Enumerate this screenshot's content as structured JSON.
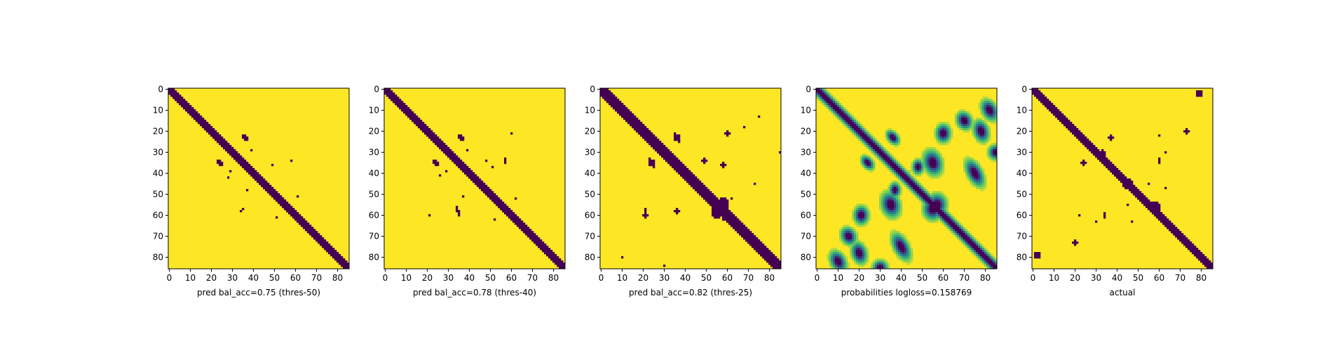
{
  "figure": {
    "panels": [
      {
        "xlabel": "pred bal_acc=0.75 (thres-50)",
        "mode": "binary",
        "diag_width": 2.2,
        "off_diag": false,
        "blobs": [
          [
            23,
            36,
            1.6,
            1.0,
            0.7
          ],
          [
            35,
            24,
            1.6,
            1.0,
            0.7
          ],
          [
            29,
            39,
            0.6,
            0.6,
            0
          ],
          [
            39,
            29,
            0.6,
            0.6,
            0
          ],
          [
            34,
            58,
            0.7,
            0.7,
            0
          ],
          [
            58,
            34,
            0.7,
            0.7,
            0
          ],
          [
            36,
            49,
            0.6,
            0.6,
            0
          ],
          [
            61,
            51,
            0.6,
            0.6,
            0
          ],
          [
            51,
            61,
            0.6,
            0.6,
            0
          ],
          [
            42,
            28,
            0.6,
            0.6,
            0
          ],
          [
            57,
            35,
            0.6,
            0.6,
            0
          ],
          [
            48,
            37,
            0.5,
            0.5,
            0
          ]
        ]
      },
      {
        "xlabel": "pred bal_acc=0.78 (thres-40)",
        "mode": "binary",
        "diag_width": 2.4,
        "off_diag": false,
        "blobs": [
          [
            23,
            36,
            1.8,
            1.1,
            0.7
          ],
          [
            35,
            24,
            1.8,
            1.1,
            0.7
          ],
          [
            29,
            39,
            0.6,
            0.6,
            0
          ],
          [
            39,
            29,
            0.6,
            0.6,
            0
          ],
          [
            34,
            57,
            1.0,
            0.8,
            0
          ],
          [
            57,
            34,
            1.0,
            0.8,
            0
          ],
          [
            21,
            60,
            0.6,
            0.6,
            0
          ],
          [
            60,
            21,
            0.6,
            0.6,
            0
          ],
          [
            51,
            37,
            0.8,
            0.6,
            0
          ],
          [
            37,
            51,
            0.8,
            0.6,
            0
          ],
          [
            52,
            62,
            0.7,
            0.7,
            0
          ],
          [
            62,
            52,
            0.7,
            0.7,
            0
          ],
          [
            34,
            48,
            0.6,
            0.6,
            0
          ],
          [
            59,
            35,
            1.0,
            0.7,
            0
          ],
          [
            41,
            26,
            0.6,
            0.6,
            0
          ]
        ]
      },
      {
        "xlabel": "pred bal_acc=0.82 (thres-25)",
        "mode": "binary",
        "diag_width": 2.6,
        "off_diag": true,
        "blobs": [
          [
            23,
            36,
            2.0,
            1.2,
            0.7
          ],
          [
            35,
            24,
            2.0,
            1.2,
            0.7
          ],
          [
            58,
            55,
            2.8,
            2.5,
            0
          ],
          [
            55,
            58,
            2.8,
            2.5,
            0
          ],
          [
            34,
            49,
            1.0,
            0.9,
            0
          ],
          [
            36,
            58,
            1.2,
            1.0,
            0
          ],
          [
            58,
            36,
            1.2,
            1.0,
            0
          ],
          [
            21,
            60,
            1.1,
            0.9,
            0
          ],
          [
            60,
            21,
            1.1,
            0.9,
            0
          ],
          [
            18,
            68,
            0.8,
            0.8,
            0
          ],
          [
            45,
            73,
            0.6,
            0.6,
            0
          ],
          [
            58,
            21,
            1.5,
            0.7,
            0
          ],
          [
            62,
            58,
            0.7,
            0.7,
            0
          ],
          [
            52,
            62,
            0.7,
            0.7,
            0
          ],
          [
            30,
            85,
            0.6,
            0.6,
            0
          ],
          [
            80,
            10,
            0.7,
            0.7,
            0
          ],
          [
            84,
            30,
            0.5,
            0.5,
            0
          ],
          [
            13,
            75,
            0.6,
            0.6,
            0
          ]
        ]
      },
      {
        "xlabel": "probabilities logloss=0.158769",
        "mode": "prob",
        "diag_width": 2.0,
        "off_diag": true,
        "blobs": [
          [
            23,
            36,
            2.2,
            1.4,
            0.7
          ],
          [
            35,
            24,
            2.2,
            1.4,
            0.7
          ],
          [
            57,
            55,
            3.0,
            2.6,
            0
          ],
          [
            55,
            57,
            3.0,
            2.6,
            0
          ],
          [
            35,
            55,
            3.5,
            2.5,
            0.3
          ],
          [
            55,
            35,
            3.5,
            2.5,
            0.3
          ],
          [
            21,
            60,
            2.5,
            2.0,
            0
          ],
          [
            60,
            21,
            2.5,
            2.0,
            0
          ],
          [
            40,
            75,
            4.0,
            2.0,
            0.5
          ],
          [
            75,
            40,
            4.0,
            2.0,
            0.5
          ],
          [
            20,
            78,
            3.0,
            2.0,
            0.3
          ],
          [
            78,
            20,
            3.0,
            2.0,
            0.3
          ],
          [
            15,
            70,
            2.5,
            2.0,
            0.5
          ],
          [
            70,
            15,
            2.5,
            2.0,
            0.5
          ],
          [
            30,
            85,
            2.0,
            2.0,
            0
          ],
          [
            85,
            30,
            2.0,
            2.0,
            0
          ],
          [
            10,
            82,
            3.0,
            2.0,
            0.5
          ],
          [
            82,
            10,
            3.0,
            2.0,
            0.5
          ],
          [
            48,
            37,
            2.0,
            1.5,
            0
          ],
          [
            37,
            48,
            2.0,
            1.5,
            0
          ]
        ]
      },
      {
        "xlabel": "actual",
        "mode": "binary",
        "diag_width": 1.8,
        "off_diag": true,
        "blobs": [
          [
            31,
            33,
            1.8,
            1.6,
            0
          ],
          [
            56,
            58,
            2.2,
            2.0,
            0
          ],
          [
            23,
            37,
            1.2,
            0.8,
            0.7
          ],
          [
            35,
            24,
            1.2,
            0.8,
            0.7
          ],
          [
            20,
            73,
            1.0,
            1.0,
            0
          ],
          [
            73,
            20,
            1.0,
            1.0,
            0
          ],
          [
            22,
            60,
            0.8,
            0.8,
            0
          ],
          [
            60,
            22,
            0.8,
            0.8,
            0
          ],
          [
            46,
            44,
            1.3,
            1.0,
            0
          ],
          [
            44,
            46,
            1.3,
            1.0,
            0
          ],
          [
            60,
            34,
            1.0,
            0.8,
            0
          ],
          [
            34,
            60,
            1.0,
            0.8,
            0
          ],
          [
            45,
            55,
            0.8,
            0.6,
            0
          ],
          [
            55,
            45,
            0.8,
            0.6,
            0
          ],
          [
            79,
            2,
            1.5,
            1.5,
            0
          ],
          [
            2,
            79,
            1.5,
            1.5,
            0
          ],
          [
            63,
            47,
            0.6,
            0.6,
            0
          ],
          [
            47,
            63,
            0.6,
            0.6,
            0
          ],
          [
            30,
            63,
            0.7,
            0.7,
            0
          ],
          [
            63,
            30,
            0.7,
            0.7,
            0
          ]
        ]
      }
    ]
  },
  "chart_data": [
    {
      "type": "heatmap",
      "title": "",
      "xlabel": "pred bal_acc=0.75 (thres-50)",
      "ylabel": "",
      "xticks": [
        0,
        10,
        20,
        30,
        40,
        50,
        60,
        70,
        80
      ],
      "yticks": [
        0,
        10,
        20,
        30,
        40,
        50,
        60,
        70,
        80
      ],
      "size": 86,
      "colormap": "viridis",
      "values": "binary contact map (0/1)"
    },
    {
      "type": "heatmap",
      "title": "",
      "xlabel": "pred bal_acc=0.78 (thres-40)",
      "ylabel": "",
      "xticks": [
        0,
        10,
        20,
        30,
        40,
        50,
        60,
        70,
        80
      ],
      "yticks": [
        0,
        10,
        20,
        30,
        40,
        50,
        60,
        70,
        80
      ],
      "size": 86,
      "colormap": "viridis",
      "values": "binary contact map (0/1)"
    },
    {
      "type": "heatmap",
      "title": "",
      "xlabel": "pred bal_acc=0.82 (thres-25)",
      "ylabel": "",
      "xticks": [
        0,
        10,
        20,
        30,
        40,
        50,
        60,
        70,
        80
      ],
      "yticks": [
        0,
        10,
        20,
        30,
        40,
        50,
        60,
        70,
        80
      ],
      "size": 86,
      "colormap": "viridis",
      "values": "binary contact map (0/1)"
    },
    {
      "type": "heatmap",
      "title": "",
      "xlabel": "probabilities logloss=0.158769",
      "ylabel": "",
      "xticks": [
        0,
        10,
        20,
        30,
        40,
        50,
        60,
        70,
        80
      ],
      "yticks": [
        0,
        10,
        20,
        30,
        40,
        50,
        60,
        70,
        80
      ],
      "size": 86,
      "colormap": "viridis",
      "values": "continuous probabilities (0..1)"
    },
    {
      "type": "heatmap",
      "title": "",
      "xlabel": "actual",
      "ylabel": "",
      "xticks": [
        0,
        10,
        20,
        30,
        40,
        50,
        60,
        70,
        80
      ],
      "yticks": [
        0,
        10,
        20,
        30,
        40,
        50,
        60,
        70,
        80
      ],
      "size": 86,
      "colormap": "viridis",
      "values": "binary contact map (0/1)"
    }
  ]
}
